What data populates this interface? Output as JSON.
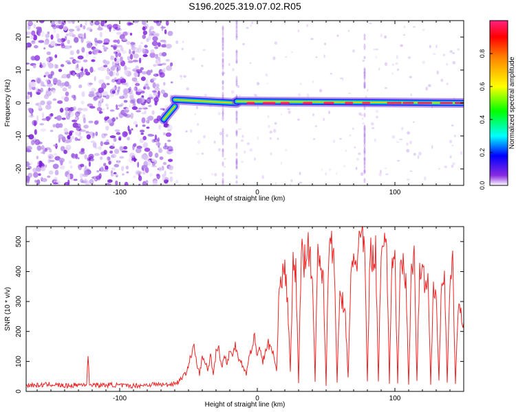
{
  "title": "S196.2025.319.07.02.R05",
  "colors": {
    "snr_line": "#ee2222",
    "spec_noise": "#8a2be2",
    "spec_core": "#ff2060"
  },
  "chart_data": [
    {
      "type": "heatmap",
      "name": "spectrogram",
      "xlabel": "Height of straight line (km)",
      "ylabel": "Frequency (Hz)",
      "xlim": [
        -168,
        150
      ],
      "ylim": [
        -25,
        25
      ],
      "xticks": [
        -100,
        0,
        100
      ],
      "xtick_labels": [
        "-100",
        "0",
        "100"
      ],
      "yticks": [
        -20,
        -10,
        0,
        10,
        20
      ],
      "ytick_labels": [
        "-20",
        "-10",
        "0",
        "10",
        "20"
      ],
      "noise_region_x": [
        -168,
        -62
      ],
      "track_segments": [
        {
          "x": [
            -68,
            -60
          ],
          "freq": [
            -5,
            -1
          ]
        },
        {
          "x": [
            -60,
            -15
          ],
          "freq": [
            1,
            0
          ]
        },
        {
          "x": [
            -15,
            150
          ],
          "freq": [
            0.5,
            0
          ]
        }
      ],
      "vertical_streaks_x": [
        -25,
        -15,
        78
      ]
    },
    {
      "type": "colorbar",
      "name": "amplitude-colorbar",
      "label": "Normalized spectral amplitude",
      "range": [
        0,
        1
      ],
      "ticks": [
        0.0,
        0.2,
        0.4,
        0.6,
        0.8
      ],
      "tick_labels": [
        "0.0",
        "0.2",
        "0.4",
        "0.6",
        "0.8"
      ]
    },
    {
      "type": "line",
      "name": "snr",
      "xlabel": "Height of straight line (km)",
      "ylabel": "SNR (10 * v/v)",
      "xlim": [
        -168,
        150
      ],
      "ylim": [
        0,
        550
      ],
      "xticks": [
        -100,
        0,
        100
      ],
      "xtick_labels": [
        "-100",
        "0",
        "100"
      ],
      "yticks": [
        0,
        100,
        200,
        300,
        400,
        500
      ],
      "ytick_labels": [
        "0",
        "100",
        "200",
        "300",
        "400",
        "500"
      ],
      "series": [
        {
          "name": "SNR",
          "x": [
            -168,
            -160,
            -150,
            -140,
            -130,
            -124,
            -123,
            -122,
            -115,
            -105,
            -95,
            -85,
            -75,
            -65,
            -58,
            -52,
            -48,
            -46,
            -44,
            -42,
            -40,
            -38,
            -36,
            -34,
            -32,
            -30,
            -28,
            -26,
            -24,
            -22,
            -20,
            -18,
            -16,
            -14,
            -12,
            -10,
            -8,
            -6,
            -4,
            -2,
            0,
            2,
            4,
            6,
            8,
            10,
            12,
            14,
            16,
            18,
            20,
            22,
            24,
            26,
            28,
            30,
            32,
            34,
            36,
            38,
            40,
            42,
            44,
            46,
            48,
            50,
            52,
            54,
            56,
            58,
            60,
            62,
            64,
            66,
            68,
            70,
            72,
            74,
            76,
            78,
            80,
            82,
            84,
            86,
            88,
            90,
            92,
            94,
            96,
            98,
            100,
            102,
            104,
            106,
            108,
            110,
            112,
            114,
            116,
            118,
            120,
            122,
            124,
            126,
            128,
            130,
            132,
            134,
            136,
            138,
            140,
            142,
            144,
            146,
            148,
            150
          ],
          "y": [
            22,
            20,
            24,
            18,
            22,
            25,
            120,
            25,
            20,
            22,
            18,
            20,
            24,
            22,
            30,
            60,
            120,
            150,
            90,
            60,
            110,
            100,
            70,
            120,
            60,
            130,
            150,
            80,
            120,
            90,
            140,
            110,
            160,
            120,
            100,
            80,
            60,
            110,
            150,
            180,
            120,
            150,
            100,
            130,
            160,
            145,
            120,
            60,
            390,
            370,
            420,
            300,
            60,
            430,
            400,
            30,
            480,
            420,
            500,
            450,
            380,
            40,
            470,
            430,
            380,
            20,
            500,
            480,
            420,
            30,
            330,
            300,
            250,
            40,
            380,
            460,
            420,
            500,
            520,
            470,
            30,
            480,
            440,
            470,
            30,
            500,
            520,
            480,
            30,
            460,
            440,
            30,
            400,
            420,
            360,
            30,
            410,
            470,
            30,
            420,
            400,
            350,
            380,
            30,
            350,
            330,
            30,
            380,
            400,
            30,
            350,
            420,
            30,
            280,
            250,
            230
          ]
        }
      ]
    }
  ]
}
